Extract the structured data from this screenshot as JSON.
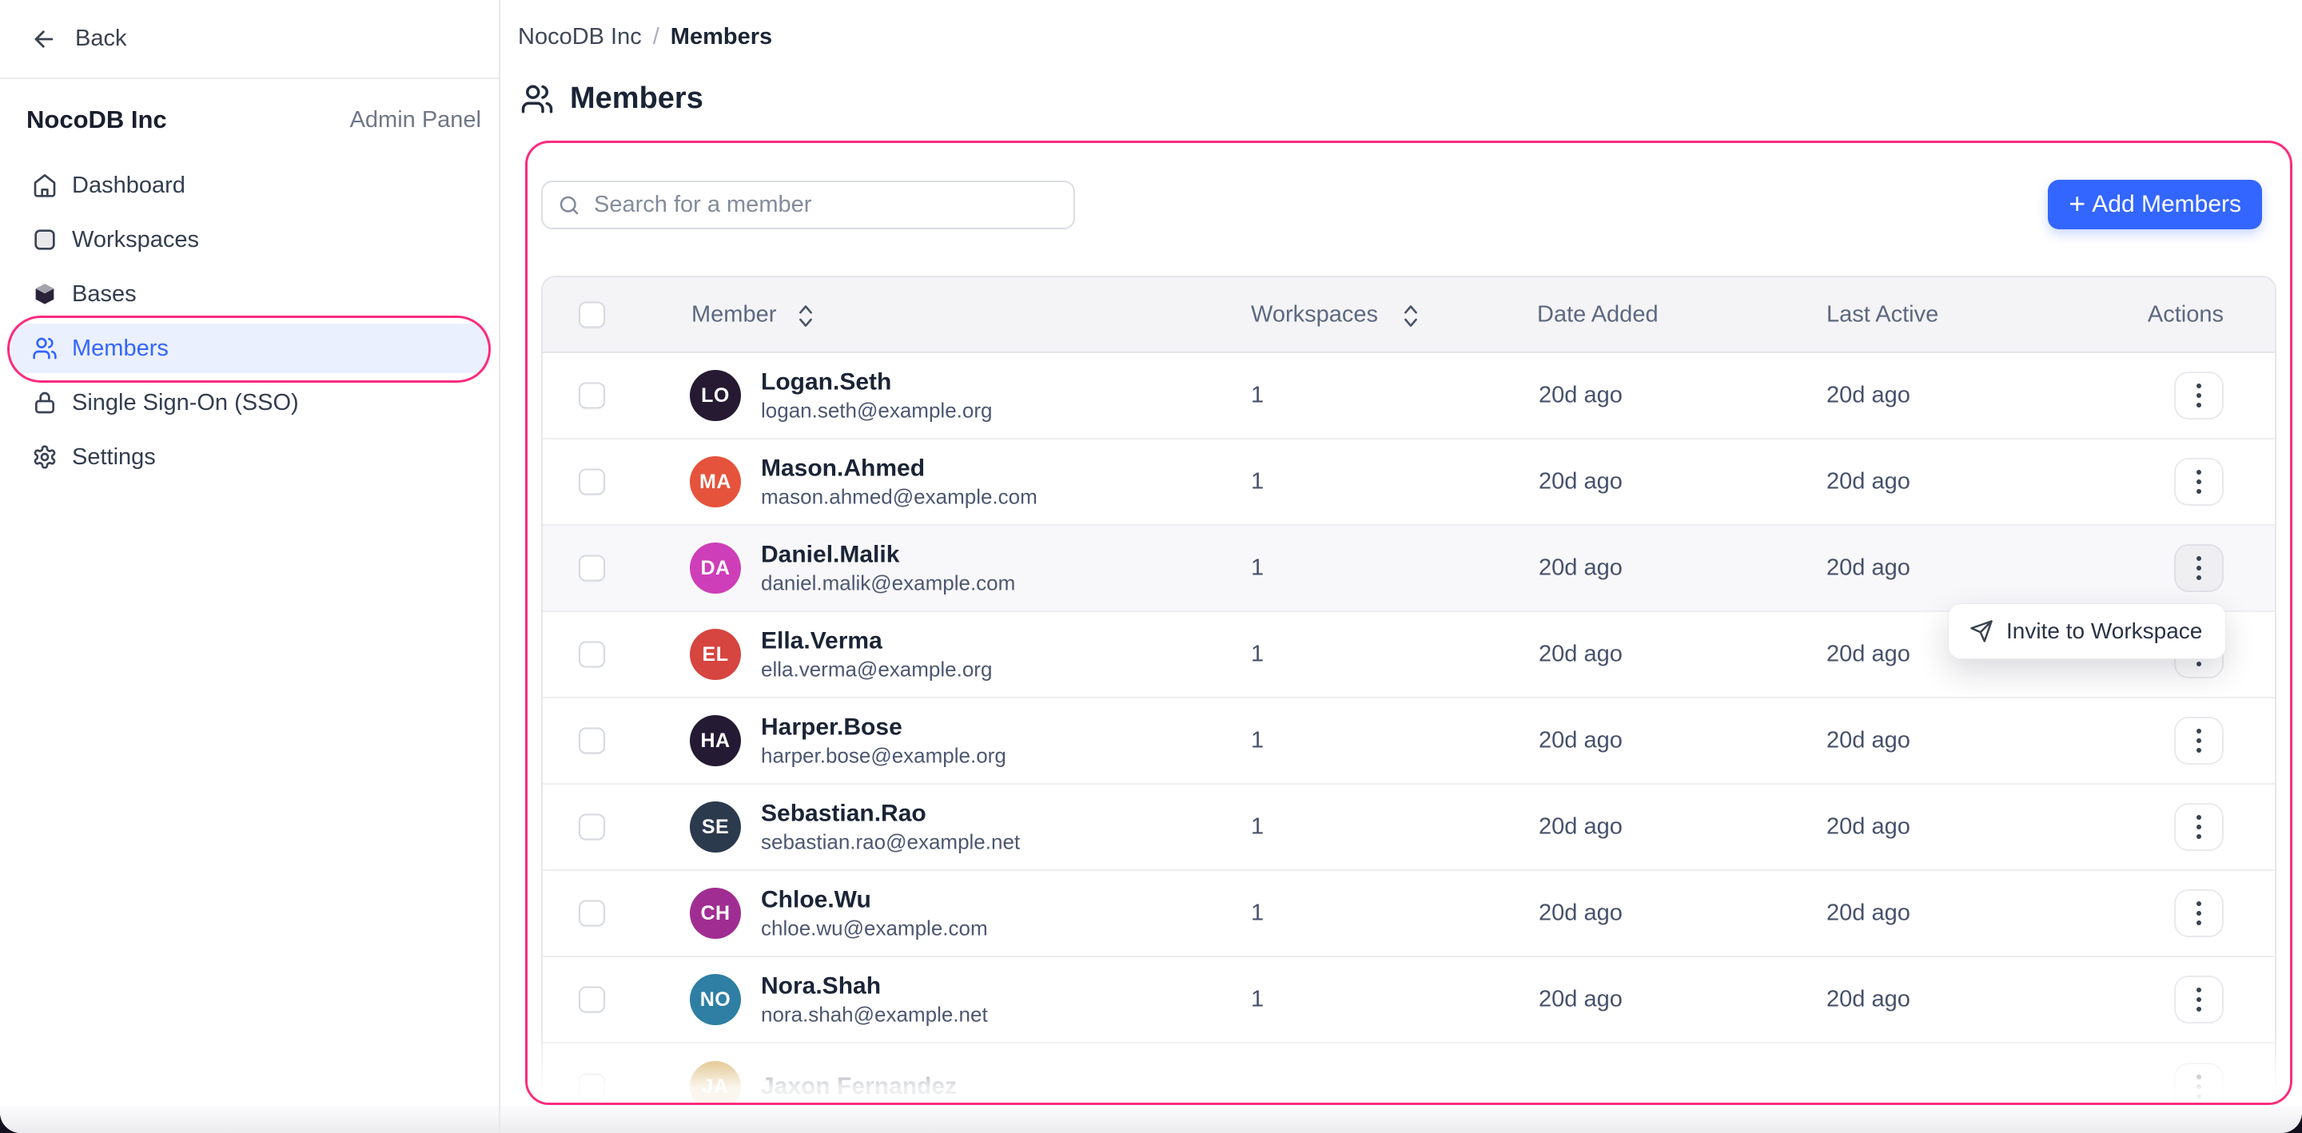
{
  "colors": {
    "accent_blue": "#3366FF",
    "annotation_pink": "#FB2C7D",
    "active_nav_bg": "#EBF0FF",
    "table_header_bg": "#F4F4F6"
  },
  "sidebar": {
    "back_label": "Back",
    "org_name": "NocoDB Inc",
    "panel_label": "Admin Panel",
    "items": [
      {
        "label": "Dashboard",
        "icon": "home-icon",
        "active": false
      },
      {
        "label": "Workspaces",
        "icon": "workspace-icon",
        "active": false
      },
      {
        "label": "Bases",
        "icon": "base-icon",
        "active": false
      },
      {
        "label": "Members",
        "icon": "members-icon",
        "active": true,
        "annotated": true
      },
      {
        "label": "Single Sign-On (SSO)",
        "icon": "lock-icon",
        "active": false
      },
      {
        "label": "Settings",
        "icon": "gear-icon",
        "active": false
      }
    ]
  },
  "header": {
    "breadcrumb": {
      "parent": "NocoDB Inc",
      "separator": "/",
      "current": "Members"
    },
    "title": "Members"
  },
  "toolbar": {
    "search_placeholder": "Search for a member",
    "search_value": "",
    "add_button_plus": "+",
    "add_button_label": "Add Members"
  },
  "table": {
    "select_all_checked": false,
    "columns": [
      {
        "label": "Member",
        "sortable": true
      },
      {
        "label": "Workspaces",
        "sortable": true
      },
      {
        "label": "Date Added",
        "sortable": false
      },
      {
        "label": "Last Active",
        "sortable": false
      },
      {
        "label": "Actions",
        "sortable": false
      }
    ],
    "rows": [
      {
        "initials": "LO",
        "name": "Logan.Seth",
        "email": "logan.seth@example.org",
        "workspaces": "1",
        "date_added": "20d ago",
        "last_active": "20d ago",
        "avatar_color": "#261A33",
        "checked": false,
        "highlighted": false,
        "menu_open": false
      },
      {
        "initials": "MA",
        "name": "Mason.Ahmed",
        "email": "mason.ahmed@example.com",
        "workspaces": "1",
        "date_added": "20d ago",
        "last_active": "20d ago",
        "avatar_color": "#E5533C",
        "checked": false,
        "highlighted": false,
        "menu_open": false
      },
      {
        "initials": "DA",
        "name": "Daniel.Malik",
        "email": "daniel.malik@example.com",
        "workspaces": "1",
        "date_added": "20d ago",
        "last_active": "20d ago",
        "avatar_color": "#CE3EB8",
        "checked": false,
        "highlighted": true,
        "menu_open": true
      },
      {
        "initials": "EL",
        "name": "Ella.Verma",
        "email": "ella.verma@example.org",
        "workspaces": "1",
        "date_added": "20d ago",
        "last_active": "20d ago",
        "avatar_color": "#D64540",
        "checked": false,
        "highlighted": false,
        "menu_open": false
      },
      {
        "initials": "HA",
        "name": "Harper.Bose",
        "email": "harper.bose@example.org",
        "workspaces": "1",
        "date_added": "20d ago",
        "last_active": "20d ago",
        "avatar_color": "#251A34",
        "checked": false,
        "highlighted": false,
        "menu_open": false
      },
      {
        "initials": "SE",
        "name": "Sebastian.Rao",
        "email": "sebastian.rao@example.net",
        "workspaces": "1",
        "date_added": "20d ago",
        "last_active": "20d ago",
        "avatar_color": "#2C3A4D",
        "checked": false,
        "highlighted": false,
        "menu_open": false
      },
      {
        "initials": "CH",
        "name": "Chloe.Wu",
        "email": "chloe.wu@example.com",
        "workspaces": "1",
        "date_added": "20d ago",
        "last_active": "20d ago",
        "avatar_color": "#A02E92",
        "checked": false,
        "highlighted": false,
        "menu_open": false
      },
      {
        "initials": "NO",
        "name": "Nora.Shah",
        "email": "nora.shah@example.net",
        "workspaces": "1",
        "date_added": "20d ago",
        "last_active": "20d ago",
        "avatar_color": "#2E7FA3",
        "checked": false,
        "highlighted": false,
        "menu_open": false
      },
      {
        "initials": "JA",
        "name": "Jaxon Fernandez",
        "email": "",
        "workspaces": "",
        "date_added": "",
        "last_active": "",
        "avatar_color": "#C9952F",
        "checked": false,
        "highlighted": false,
        "menu_open": false
      }
    ]
  },
  "popup": {
    "icon": "send-icon",
    "label": "Invite to Workspace"
  }
}
